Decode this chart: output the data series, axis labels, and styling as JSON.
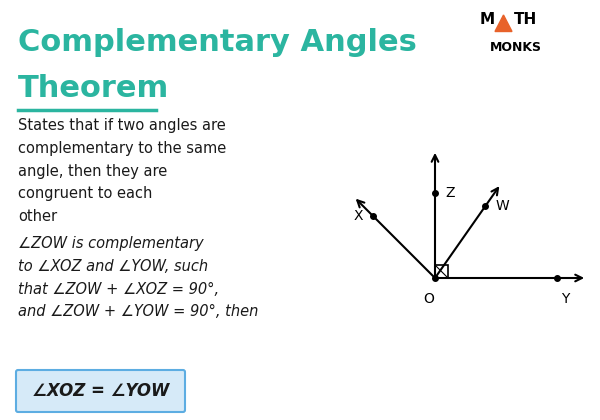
{
  "title_line1": "Complementary Angles",
  "title_line2": "Theorem",
  "title_color": "#2bb5a0",
  "underline_color": "#2bb5a0",
  "body_text1": "States that if two angles are\ncomplementary to the same\nangle, then they are\ncongruent to each\nother",
  "body_text2": "∠ZOW is complementary\nto ∠XOZ and ∠YOW, such\nthat ∠ZOW + ∠XOZ = 90°,\nand ∠ZOW + ∠YOW = 90°, then",
  "conclusion_text": "∠XOZ = ∠YOW",
  "conclusion_box_color": "#d6eaf8",
  "conclusion_border_color": "#5dade2",
  "bg_color": "#ffffff",
  "text_color": "#1a1a1a",
  "logo_text_monks": "MONKS",
  "logo_triangle_color": "#e8622a",
  "diagram_ox": 4.35,
  "diagram_oy": 1.42
}
